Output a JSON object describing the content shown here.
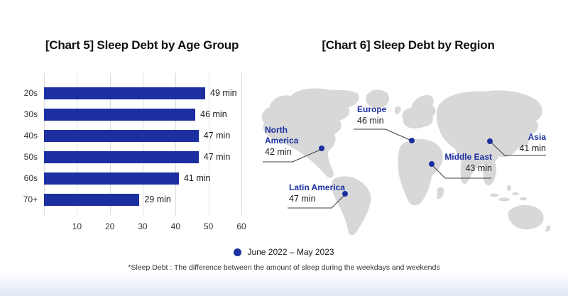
{
  "chart_data": [
    {
      "type": "bar",
      "orientation": "horizontal",
      "title": "[Chart 5] Sleep Debt by Age Group",
      "categories": [
        "20s",
        "30s",
        "40s",
        "50s",
        "60s",
        "70+"
      ],
      "values": [
        49,
        46,
        47,
        47,
        41,
        29
      ],
      "value_labels": [
        "49 min",
        "46 min",
        "47 min",
        "47 min",
        "41 min",
        "29 min"
      ],
      "unit": "min",
      "xlim": [
        0,
        60
      ],
      "x_ticks": [
        "10",
        "20",
        "30",
        "40",
        "50",
        "60"
      ],
      "grid": "vertical",
      "legend_position": "bottom-center"
    },
    {
      "type": "map",
      "title": "[Chart 6] Sleep Debt by Region",
      "regions": [
        {
          "name": "North America",
          "value": 42,
          "label": "42 min"
        },
        {
          "name": "Europe",
          "value": 46,
          "label": "46 min"
        },
        {
          "name": "Middle East",
          "value": 43,
          "label": "43 min"
        },
        {
          "name": "Asia",
          "value": 41,
          "label": "41 min"
        },
        {
          "name": "Latin America",
          "value": 47,
          "label": "47 min"
        }
      ],
      "unit": "min"
    }
  ],
  "legend": {
    "label": "June 2022 – May 2023"
  },
  "footnote": "*Sleep Debt : The difference between the amount of sleep during the weekdays and weekends",
  "colors": {
    "accent_navy": "#1B2FA0",
    "map_gray": "#D8D8D8",
    "gridline_gray": "#DCDCDC",
    "text_dark": "#1A1A1A"
  }
}
